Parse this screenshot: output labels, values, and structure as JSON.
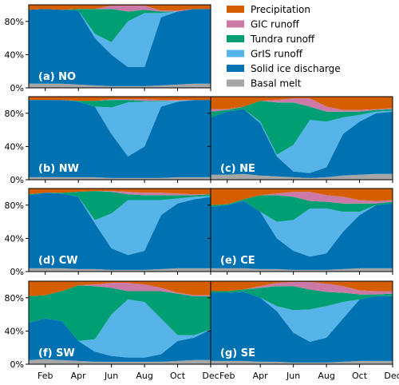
{
  "chart_data": {
    "type": "area",
    "stacked": true,
    "normalized": true,
    "x_months": [
      1,
      2,
      3,
      4,
      5,
      6,
      7,
      8,
      9,
      10,
      11,
      12
    ],
    "xtick_labels": [
      "Feb",
      "Apr",
      "Jun",
      "Aug",
      "Oct",
      "Dec"
    ],
    "xtick_months": [
      2,
      4,
      6,
      8,
      10,
      12
    ],
    "ytick_labels": [
      "0%",
      "40%",
      "80%"
    ],
    "ytick_values": [
      0,
      40,
      80
    ],
    "ylim": [
      0,
      100
    ],
    "legend_position": "top-right",
    "series": [
      {
        "name": "Basal melt",
        "color": "#a6a6a6"
      },
      {
        "name": "Solid ice discharge",
        "color": "#0072b2"
      },
      {
        "name": "GrIS runoff",
        "color": "#56b4e9"
      },
      {
        "name": "Tundra runoff",
        "color": "#009e73"
      },
      {
        "name": "GIC runoff",
        "color": "#cc79a7"
      },
      {
        "name": "Precipitation",
        "color": "#d55e00"
      }
    ],
    "panels": [
      {
        "label": "(a) NO",
        "cumulative": [
          [
            5,
            5,
            5,
            4,
            3,
            2,
            2,
            2,
            3,
            4,
            5,
            5
          ],
          [
            94,
            95,
            94,
            93,
            60,
            40,
            25,
            25,
            85,
            92,
            95,
            95
          ],
          [
            94,
            95,
            94,
            93,
            65,
            55,
            80,
            90,
            90,
            92,
            95,
            95
          ],
          [
            94,
            95,
            94,
            95,
            95,
            95,
            92,
            94,
            92,
            92,
            95,
            95
          ],
          [
            94,
            95,
            94,
            95,
            95,
            99,
            99,
            99,
            93,
            93,
            95,
            95
          ],
          [
            100,
            100,
            100,
            100,
            100,
            100,
            100,
            100,
            100,
            100,
            100,
            100
          ]
        ]
      },
      {
        "label": "(b) NW",
        "cumulative": [
          [
            3,
            3,
            3,
            3,
            3,
            2,
            2,
            2,
            2,
            3,
            3,
            3
          ],
          [
            96,
            96,
            96,
            94,
            88,
            55,
            28,
            40,
            88,
            94,
            96,
            96
          ],
          [
            96,
            96,
            96,
            94,
            88,
            87,
            93,
            94,
            94,
            95,
            96,
            96
          ],
          [
            96,
            96,
            96,
            95,
            95,
            96,
            96,
            95,
            95,
            95,
            96,
            96
          ],
          [
            96,
            96,
            96,
            95,
            95,
            97,
            97,
            97,
            96,
            96,
            96,
            96
          ],
          [
            100,
            100,
            100,
            100,
            100,
            100,
            100,
            100,
            100,
            100,
            100,
            100
          ]
        ]
      },
      {
        "label": "(c) NE",
        "cumulative": [
          [
            6,
            6,
            7,
            5,
            4,
            3,
            2,
            3,
            5,
            6,
            7,
            7
          ],
          [
            75,
            82,
            85,
            68,
            28,
            10,
            8,
            15,
            55,
            70,
            80,
            82
          ],
          [
            75,
            82,
            85,
            70,
            30,
            42,
            72,
            70,
            75,
            78,
            82,
            83
          ],
          [
            82,
            84,
            88,
            95,
            93,
            93,
            88,
            82,
            82,
            82,
            84,
            85
          ],
          [
            85,
            85,
            88,
            95,
            96,
            98,
            98,
            88,
            84,
            84,
            85,
            86
          ],
          [
            100,
            100,
            100,
            100,
            100,
            100,
            100,
            100,
            100,
            100,
            100,
            100
          ]
        ]
      },
      {
        "label": "(d) CW",
        "cumulative": [
          [
            4,
            4,
            4,
            3,
            3,
            2,
            2,
            2,
            3,
            4,
            4,
            4
          ],
          [
            92,
            95,
            94,
            90,
            58,
            28,
            20,
            25,
            68,
            82,
            87,
            90
          ],
          [
            92,
            95,
            94,
            90,
            62,
            70,
            86,
            86,
            86,
            88,
            90,
            91
          ],
          [
            93,
            95,
            95,
            96,
            97,
            96,
            93,
            92,
            92,
            92,
            92,
            93
          ],
          [
            93,
            95,
            95,
            96,
            97,
            97,
            96,
            95,
            95,
            94,
            93,
            93
          ],
          [
            100,
            100,
            100,
            100,
            100,
            100,
            100,
            100,
            100,
            100,
            100,
            100
          ]
        ]
      },
      {
        "label": "(e) CE",
        "cumulative": [
          [
            4,
            4,
            4,
            3,
            3,
            2,
            2,
            2,
            3,
            4,
            4,
            4
          ],
          [
            78,
            80,
            85,
            72,
            40,
            25,
            18,
            22,
            48,
            68,
            80,
            82
          ],
          [
            78,
            80,
            85,
            72,
            60,
            62,
            76,
            76,
            72,
            72,
            80,
            82
          ],
          [
            80,
            81,
            87,
            92,
            92,
            90,
            85,
            84,
            82,
            82,
            82,
            84
          ],
          [
            80,
            81,
            87,
            92,
            94,
            96,
            96,
            92,
            90,
            86,
            85,
            86
          ],
          [
            100,
            100,
            100,
            100,
            100,
            100,
            100,
            100,
            100,
            100,
            100,
            100
          ]
        ]
      },
      {
        "label": "(f) SW",
        "cumulative": [
          [
            5,
            6,
            5,
            4,
            3,
            3,
            3,
            3,
            3,
            4,
            5,
            5
          ],
          [
            50,
            55,
            52,
            28,
            15,
            10,
            8,
            8,
            12,
            28,
            32,
            42
          ],
          [
            50,
            55,
            52,
            28,
            30,
            60,
            78,
            75,
            55,
            35,
            35,
            42
          ],
          [
            82,
            83,
            88,
            95,
            94,
            92,
            88,
            88,
            88,
            85,
            82,
            82
          ],
          [
            82,
            83,
            88,
            95,
            96,
            98,
            98,
            96,
            92,
            86,
            83,
            83
          ],
          [
            100,
            100,
            100,
            100,
            100,
            100,
            100,
            100,
            100,
            100,
            100,
            100
          ]
        ]
      },
      {
        "label": "(g) SE",
        "cumulative": [
          [
            4,
            4,
            4,
            3,
            3,
            2,
            2,
            2,
            3,
            4,
            4,
            4
          ],
          [
            86,
            86,
            87,
            80,
            64,
            38,
            27,
            32,
            55,
            78,
            82,
            82
          ],
          [
            86,
            86,
            87,
            80,
            70,
            65,
            66,
            70,
            75,
            78,
            82,
            82
          ],
          [
            88,
            88,
            90,
            92,
            94,
            94,
            90,
            87,
            86,
            84,
            84,
            85
          ],
          [
            88,
            88,
            90,
            94,
            98,
            99,
            99,
            97,
            94,
            89,
            88,
            88
          ],
          [
            100,
            100,
            100,
            100,
            100,
            100,
            100,
            100,
            100,
            100,
            100,
            100
          ]
        ]
      }
    ]
  }
}
